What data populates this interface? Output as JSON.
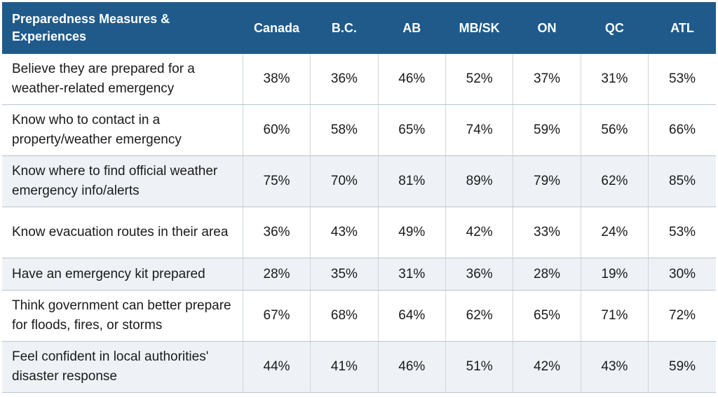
{
  "header": {
    "first": "Preparedness Measures & Experiences",
    "columns": [
      "Canada",
      "B.C.",
      "AB",
      "MB/SK",
      "ON",
      "QC",
      "ATL"
    ]
  },
  "rows": [
    {
      "label": "Believe they are prepared for a weather-related emergency",
      "values": [
        "38%",
        "36%",
        "46%",
        "52%",
        "37%",
        "31%",
        "53%"
      ]
    },
    {
      "label": "Know who to contact in a property/weather emergency",
      "values": [
        "60%",
        "58%",
        "65%",
        "74%",
        "59%",
        "56%",
        "66%"
      ]
    },
    {
      "label": "Know where to find official weather emergency info/alerts",
      "values": [
        "75%",
        "70%",
        "81%",
        "89%",
        "79%",
        "62%",
        "85%"
      ]
    },
    {
      "label": "Know evacuation routes in their area",
      "values": [
        "36%",
        "43%",
        "49%",
        "42%",
        "33%",
        "24%",
        "53%"
      ]
    },
    {
      "label": "Have an emergency kit prepared",
      "values": [
        "28%",
        "35%",
        "31%",
        "36%",
        "28%",
        "19%",
        "30%"
      ]
    },
    {
      "label": "Think government can better prepare for floods, fires, or storms",
      "values": [
        "67%",
        "68%",
        "64%",
        "62%",
        "65%",
        "71%",
        "72%"
      ]
    },
    {
      "label": "Feel confident in local authorities' disaster response",
      "values": [
        "44%",
        "41%",
        "46%",
        "51%",
        "42%",
        "43%",
        "59%"
      ]
    }
  ],
  "colors": {
    "header_bg": "#1f5a8b",
    "header_text": "#ffffff",
    "row_shade": "#eef2f7"
  }
}
